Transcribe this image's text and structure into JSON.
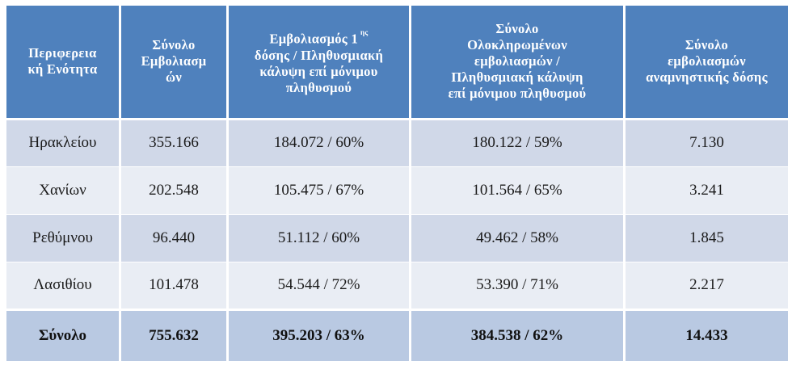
{
  "table": {
    "headers": [
      {
        "text": "Περιφερεια κή Ενότητα"
      },
      {
        "text": "Σύνολο Εμβολιασμ ών"
      },
      {
        "text": "Εμβολιασμός 1 δόσης / Πληθυσμιακή κάλυψη επί μόνιμου πληθυσμού",
        "sup": "ης"
      },
      {
        "text": "Σύνολο Ολοκληρωμένων εμβολιασμών / Πληθυσμιακή κάλυψη επί μόνιμου πληθυσμού"
      },
      {
        "text": "Σύνολο εμβολιασμών αναμνηστικής δόσης"
      }
    ],
    "header_lines": [
      [
        "Περιφερεια",
        "κή Ενότητα"
      ],
      [
        "Σύνολο",
        "Εμβολιασμ",
        "ών"
      ],
      [
        "Εμβολιασμός 1",
        "δόσης / Πληθυσμιακή",
        "κάλυψη επί μόνιμου",
        "πληθυσμού"
      ],
      [
        "Σύνολο",
        "Ολοκληρωμένων",
        "εμβολιασμών /",
        "Πληθυσμιακή κάλυψη",
        "επί μόνιμου πληθυσμού"
      ],
      [
        "Σύνολο",
        "εμβολιασμών",
        "αναμνηστικής δόσης"
      ]
    ],
    "header_sup": "ης",
    "rows": [
      [
        "Ηρακλείου",
        "355.166",
        "184.072 / 60%",
        "180.122 / 59%",
        "7.130"
      ],
      [
        "Χανίων",
        "202.548",
        "105.475 / 67%",
        "101.564 / 65%",
        "3.241"
      ],
      [
        "Ρεθύμνου",
        "96.440",
        "51.112 / 60%",
        "49.462 / 58%",
        "1.845"
      ],
      [
        "Λασιθίου",
        "101.478",
        "54.544 / 72%",
        "53.390 / 71%",
        "2.217"
      ]
    ],
    "total": [
      "Σύνολο",
      "755.632",
      "395.203 / 63%",
      "384.538 / 62%",
      "14.433"
    ]
  },
  "colors": {
    "header_bg": "#4f81bd",
    "row_odd": "#d0d8e8",
    "row_even": "#e9edf4",
    "total_bg": "#b9c9e2"
  }
}
